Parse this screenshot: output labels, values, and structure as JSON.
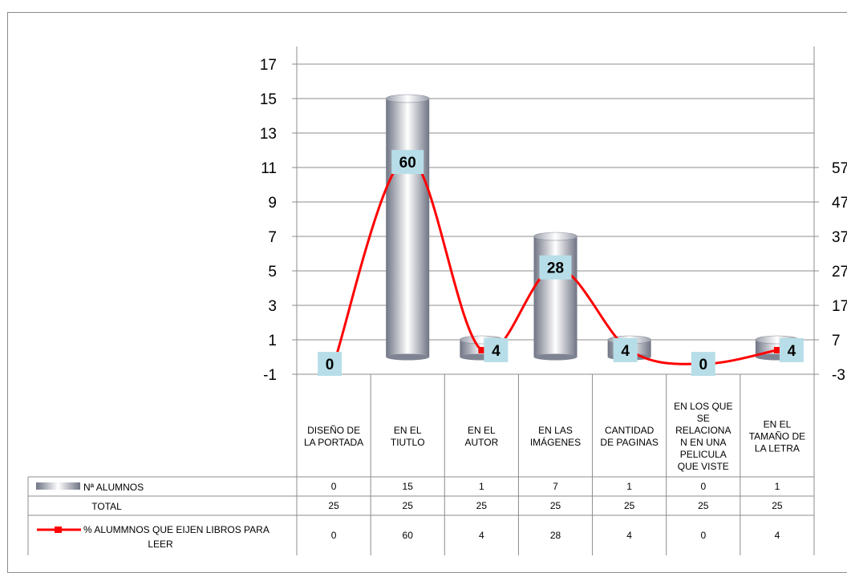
{
  "chart_data": {
    "type": "bar",
    "categories": [
      [
        "DISEÑO DE",
        "LA PORTADA"
      ],
      [
        "EN EL",
        "TIUTLO"
      ],
      [
        "EN EL",
        "AUTOR"
      ],
      [
        "EN LAS",
        "IMÁGENES"
      ],
      [
        "CANTIDAD",
        "DE PAGINAS"
      ],
      [
        "EN LOS QUE",
        "SE",
        "RELACIONA",
        "N EN UNA",
        "PELICULA",
        "QUE VISTE"
      ],
      [
        "EN EL",
        "TAMAÑO DE",
        "LA LETRA"
      ]
    ],
    "series": [
      {
        "name": "Nª ALUMNOS",
        "type": "bar",
        "axis": "left",
        "values": [
          0,
          15,
          1,
          7,
          1,
          0,
          1
        ]
      },
      {
        "name": "TOTAL",
        "type": "table-only",
        "values": [
          25,
          25,
          25,
          25,
          25,
          25,
          25
        ]
      },
      {
        "name": "% ALUMMNOS QUE EIJEN LIBROS PARA LEER",
        "type": "line",
        "axis": "right",
        "color": "#ff0000",
        "smooth": true,
        "values": [
          0,
          60,
          4,
          28,
          4,
          0,
          4
        ]
      }
    ],
    "data_labels": [
      "0",
      "60",
      "4",
      "28",
      "4",
      "0",
      "4"
    ],
    "left_axis": {
      "ticks": [
        "-1",
        "1",
        "3",
        "5",
        "7",
        "9",
        "11",
        "13",
        "15",
        "17"
      ],
      "ylim": [
        -1,
        18
      ]
    },
    "right_axis": {
      "ticks": [
        "-3",
        "7",
        "17",
        "27",
        "37",
        "47",
        "57"
      ],
      "visible_ticks": [
        "-3",
        "7",
        "17",
        "27",
        "37",
        "47",
        "57"
      ]
    },
    "grid": "horizontal",
    "legend": "data-table",
    "colors": {
      "bar_light": "#ffffff",
      "bar_dark": "#7f8493",
      "line": "#ff0000",
      "label_bg": "#b7dee8",
      "grid": "#8c8c8c"
    }
  },
  "table": {
    "row_labels": [
      "Nª ALUMNOS",
      "TOTAL",
      "% ALUMMNOS QUE EIJEN LIBROS PARA",
      "LEER"
    ]
  }
}
